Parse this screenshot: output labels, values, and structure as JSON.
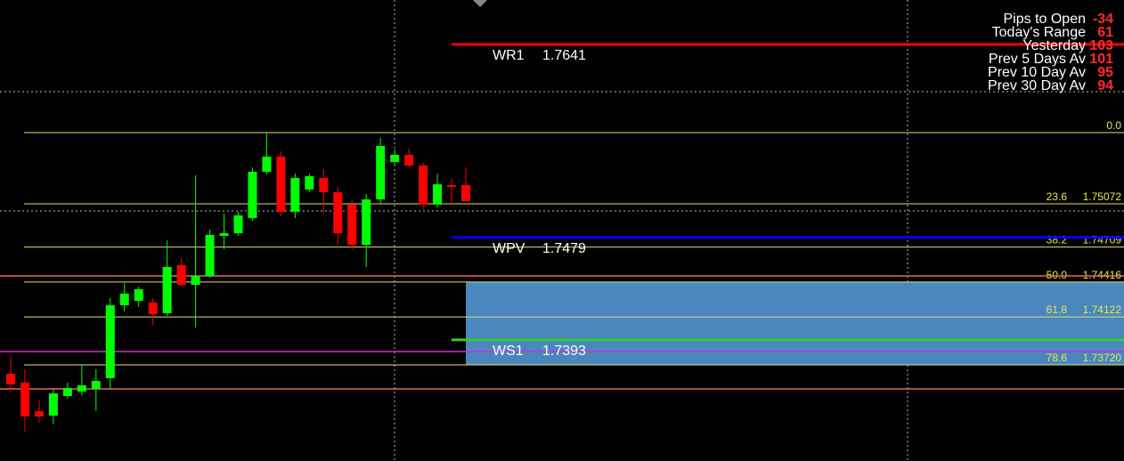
{
  "chart": {
    "type": "candlestick",
    "ylim": [
      1.72913,
      1.76783
    ],
    "up_color": "#00ff00",
    "down_color": "#ff0000",
    "candles": [
      {
        "open": 1.73645,
        "high": 1.73795,
        "low": 1.73496,
        "close": 1.73556
      },
      {
        "open": 1.73571,
        "high": 1.73683,
        "low": 1.7316,
        "close": 1.73287
      },
      {
        "open": 1.73331,
        "high": 1.73421,
        "low": 1.73234,
        "close": 1.73287
      },
      {
        "open": 1.73294,
        "high": 1.73511,
        "low": 1.73227,
        "close": 1.73481
      },
      {
        "open": 1.73458,
        "high": 1.73571,
        "low": 1.73436,
        "close": 1.73526
      },
      {
        "open": 1.73496,
        "high": 1.7372,
        "low": 1.73458,
        "close": 1.73548
      },
      {
        "open": 1.73518,
        "high": 1.73683,
        "low": 1.73331,
        "close": 1.73585
      },
      {
        "open": 1.73608,
        "high": 1.7428,
        "low": 1.73518,
        "close": 1.7422
      },
      {
        "open": 1.7422,
        "high": 1.74407,
        "low": 1.74168,
        "close": 1.74318
      },
      {
        "open": 1.74258,
        "high": 1.74377,
        "low": 1.74205,
        "close": 1.74355
      },
      {
        "open": 1.74243,
        "high": 1.7428,
        "low": 1.74056,
        "close": 1.74146
      },
      {
        "open": 1.74153,
        "high": 1.74766,
        "low": 1.74131,
        "close": 1.74542
      },
      {
        "open": 1.74557,
        "high": 1.74616,
        "low": 1.74377,
        "close": 1.74392
      },
      {
        "open": 1.74392,
        "high": 1.75311,
        "low": 1.74034,
        "close": 1.74467
      },
      {
        "open": 1.74467,
        "high": 1.74855,
        "low": 1.74452,
        "close": 1.74811
      },
      {
        "open": 1.74803,
        "high": 1.7499,
        "low": 1.74691,
        "close": 1.74825
      },
      {
        "open": 1.74825,
        "high": 1.75005,
        "low": 1.74803,
        "close": 1.74975
      },
      {
        "open": 1.74952,
        "high": 1.75378,
        "low": 1.7493,
        "close": 1.75341
      },
      {
        "open": 1.75341,
        "high": 1.75662,
        "low": 1.75319,
        "close": 1.75468
      },
      {
        "open": 1.75468,
        "high": 1.75513,
        "low": 1.74967,
        "close": 1.75005
      },
      {
        "open": 1.75005,
        "high": 1.75326,
        "low": 1.74952,
        "close": 1.75289
      },
      {
        "open": 1.75192,
        "high": 1.75326,
        "low": 1.75169,
        "close": 1.75304
      },
      {
        "open": 1.75289,
        "high": 1.75363,
        "low": 1.7499,
        "close": 1.75169
      },
      {
        "open": 1.75169,
        "high": 1.75214,
        "low": 1.74728,
        "close": 1.74825
      },
      {
        "open": 1.75065,
        "high": 1.75102,
        "low": 1.74691,
        "close": 1.74728
      },
      {
        "open": 1.74728,
        "high": 1.75154,
        "low": 1.74542,
        "close": 1.75109
      },
      {
        "open": 1.75109,
        "high": 1.75625,
        "low": 1.75079,
        "close": 1.75558
      },
      {
        "open": 1.75423,
        "high": 1.75528,
        "low": 1.75393,
        "close": 1.75483
      },
      {
        "open": 1.75483,
        "high": 1.75535,
        "low": 1.75378,
        "close": 1.75393
      },
      {
        "open": 1.75393,
        "high": 1.75416,
        "low": 1.75027,
        "close": 1.75065
      },
      {
        "open": 1.75065,
        "high": 1.75326,
        "low": 1.75042,
        "close": 1.75236
      },
      {
        "open": 1.75229,
        "high": 1.75289,
        "low": 1.75065,
        "close": 1.75214
      },
      {
        "open": 1.75229,
        "high": 1.75378,
        "low": 1.75094,
        "close": 1.75094
      }
    ],
    "fib_color": "#e0e070",
    "zone_color": "#4a87bf",
    "fib_levels": [
      {
        "label": "0.0",
        "value": 1.7567
      },
      {
        "label": "23.6",
        "value": 1.75072,
        "price_label": "1.75072"
      },
      {
        "label": "38.2",
        "value": 1.74709,
        "price_label": "1.74709"
      },
      {
        "label": "50.0",
        "value": 1.74416,
        "price_label": "1.74416"
      },
      {
        "label": "61.8",
        "value": 1.74122,
        "price_label": "1.74122"
      },
      {
        "label": "78.6",
        "value": 1.7372,
        "price_label": "1.73720"
      }
    ],
    "pivots": [
      {
        "name": "WR1",
        "value": 1.7641,
        "color": "#ff0000"
      },
      {
        "name": "WPV",
        "value": 1.7479,
        "color": "#0000ff"
      },
      {
        "name": "WS1",
        "value": 1.7393,
        "color": "#33cc33"
      }
    ]
  },
  "stats": [
    {
      "label": "Pips to Open",
      "value": -34
    },
    {
      "label": "Today's Range",
      "value": 61
    },
    {
      "label": "Yesterday",
      "value": 103
    },
    {
      "label": "Prev 5 Days Av",
      "value": 101
    },
    {
      "label": "Prev 10 Day Av",
      "value": 95
    },
    {
      "label": "Prev 30 Day Av",
      "value": 94
    }
  ]
}
